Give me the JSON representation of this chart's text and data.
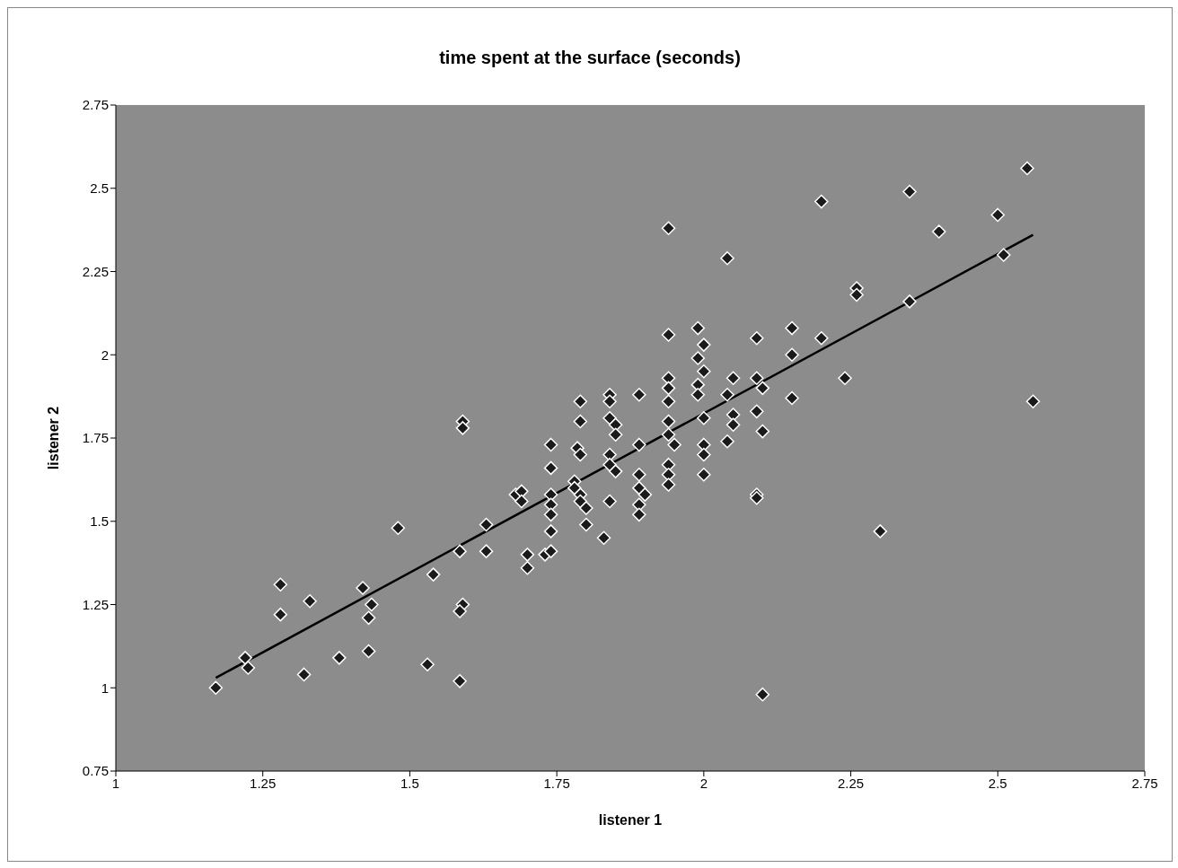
{
  "chart_data": {
    "type": "scatter",
    "title": "time spent at the surface (seconds)",
    "xlabel": "listener 1",
    "ylabel": "listener 2",
    "xlim": [
      1,
      2.75
    ],
    "xticks": [
      1,
      1.25,
      1.5,
      1.75,
      2,
      2.25,
      2.5,
      2.75
    ],
    "ylim": [
      0.75,
      2.75
    ],
    "yticks": [
      0.75,
      1,
      1.25,
      1.5,
      1.75,
      2,
      2.25,
      2.5,
      2.75
    ],
    "grid": false,
    "series": [
      {
        "color": "#1a1a1a",
        "marker": "diamond",
        "x": [
          1.17,
          1.22,
          1.225,
          1.28,
          1.28,
          1.33,
          1.32,
          1.38,
          1.42,
          1.43,
          1.435,
          1.43,
          1.48,
          1.53,
          1.54,
          1.585,
          1.59,
          1.59,
          1.59,
          1.585,
          1.585,
          1.63,
          1.63,
          1.68,
          1.69,
          1.69,
          1.7,
          1.7,
          1.74,
          1.74,
          1.74,
          1.74,
          1.74,
          1.74,
          1.73,
          1.74,
          1.79,
          1.79,
          1.785,
          1.79,
          1.78,
          1.79,
          1.79,
          1.8,
          1.8,
          1.78,
          1.84,
          1.84,
          1.84,
          1.85,
          1.85,
          1.84,
          1.84,
          1.85,
          1.84,
          1.83,
          1.89,
          1.89,
          1.89,
          1.89,
          1.9,
          1.89,
          1.89,
          1.94,
          1.94,
          1.94,
          1.94,
          1.94,
          1.94,
          1.94,
          1.95,
          1.94,
          1.94,
          1.94,
          1.99,
          2,
          1.99,
          2,
          1.99,
          1.99,
          2,
          2,
          2,
          2,
          2.04,
          2.05,
          2.04,
          2.05,
          2.05,
          2.04,
          2.09,
          2.09,
          2.1,
          2.09,
          2.1,
          2.09,
          2.09,
          2.1,
          2.15,
          2.15,
          2.15,
          2.2,
          2.2,
          2.24,
          2.26,
          2.26,
          2.3,
          2.35,
          2.35,
          2.4,
          2.5,
          2.51,
          2.55,
          2.56
        ],
        "values": [
          1,
          1.09,
          1.06,
          1.31,
          1.22,
          1.26,
          1.04,
          1.09,
          1.3,
          1.21,
          1.25,
          1.11,
          1.48,
          1.07,
          1.34,
          1.41,
          1.8,
          1.78,
          1.25,
          1.23,
          1.02,
          1.49,
          1.41,
          1.58,
          1.59,
          1.56,
          1.4,
          1.36,
          1.73,
          1.66,
          1.58,
          1.55,
          1.52,
          1.47,
          1.4,
          1.41,
          1.86,
          1.8,
          1.72,
          1.7,
          1.62,
          1.58,
          1.56,
          1.54,
          1.49,
          1.6,
          1.88,
          1.86,
          1.81,
          1.79,
          1.76,
          1.7,
          1.67,
          1.65,
          1.56,
          1.45,
          1.88,
          1.73,
          1.64,
          1.6,
          1.58,
          1.55,
          1.52,
          2.38,
          2.06,
          1.93,
          1.9,
          1.86,
          1.8,
          1.76,
          1.73,
          1.67,
          1.64,
          1.61,
          2.08,
          2.03,
          1.99,
          1.95,
          1.91,
          1.88,
          1.81,
          1.73,
          1.7,
          1.64,
          2.29,
          1.93,
          1.88,
          1.82,
          1.79,
          1.74,
          2.05,
          1.93,
          1.9,
          1.83,
          1.77,
          1.58,
          1.57,
          0.98,
          2.08,
          2,
          1.87,
          2.05,
          2.46,
          1.93,
          2.2,
          2.18,
          1.47,
          2.16,
          2.49,
          2.37,
          2.42,
          2.3,
          2.56,
          1.86
        ]
      },
      {
        "type": "line",
        "color": "#000000",
        "x": [
          1.17,
          2.56
        ],
        "values": [
          1.03,
          2.36
        ]
      }
    ]
  }
}
